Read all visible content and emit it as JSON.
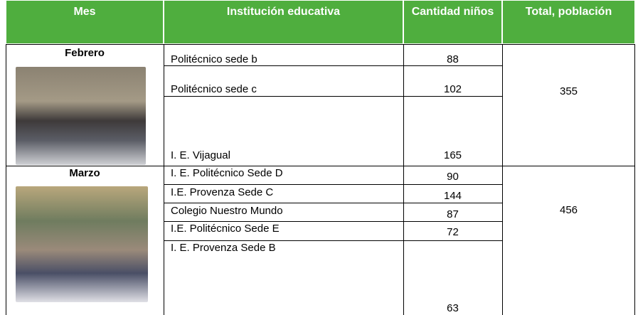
{
  "header": {
    "columns": [
      "Mes",
      "Institución educativa",
      "Cantidad niños",
      "Total, población"
    ]
  },
  "table": {
    "rows": [
      {
        "month": "Febrero",
        "total": 355,
        "institutions": [
          {
            "name": "Politécnico sede b",
            "count": 88
          },
          {
            "name": "Politécnico sede c",
            "count": 102
          },
          {
            "name": "I. E. Vijagual",
            "count": 165
          }
        ]
      },
      {
        "month": "Marzo",
        "total": 456,
        "institutions": [
          {
            "name": "I. E. Politécnico Sede D",
            "count": 90
          },
          {
            "name": "I.E. Provenza Sede C",
            "count": 144
          },
          {
            "name": "Colegio Nuestro Mundo",
            "count": 87
          },
          {
            "name": "I.E. Politécnico Sede E",
            "count": 72
          },
          {
            "name": "I. E. Provenza Sede B",
            "count": 63
          }
        ]
      }
    ]
  }
}
